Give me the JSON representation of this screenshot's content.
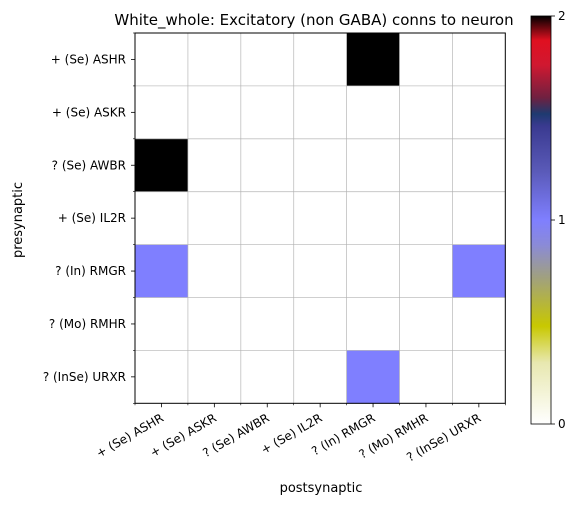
{
  "chart_data": {
    "type": "heatmap",
    "title": "White_whole: Excitatory (non GABA) conns to neuron",
    "xlabel": "postsynaptic",
    "ylabel": "presynaptic",
    "x_categories": [
      "+ (Se) ASHR",
      "+ (Se) ASKR",
      "? (Se) AWBR",
      "+ (Se) IL2R",
      "? (In) RMGR",
      "? (Mo) RMHR",
      "? (InSe) URXR"
    ],
    "y_categories": [
      "+ (Se) ASHR",
      "+ (Se) ASKR",
      "? (Se) AWBR",
      "+ (Se) IL2R",
      "? (In) RMGR",
      "? (Mo) RMHR",
      "? (InSe) URXR"
    ],
    "values": [
      [
        0,
        0,
        0,
        0,
        2,
        0,
        0
      ],
      [
        0,
        0,
        0,
        0,
        0,
        0,
        0
      ],
      [
        2,
        0,
        0,
        0,
        0,
        0,
        0
      ],
      [
        0,
        0,
        0,
        0,
        0,
        0,
        0
      ],
      [
        1,
        0,
        0,
        0,
        0,
        0,
        1
      ],
      [
        0,
        0,
        0,
        0,
        0,
        0,
        0
      ],
      [
        0,
        0,
        0,
        0,
        1,
        0,
        0
      ]
    ],
    "colorbar": {
      "range": [
        0,
        2
      ],
      "ticks": [
        "0",
        "1",
        "2"
      ],
      "colormap": "gist_stern_r"
    },
    "value_colors": {
      "0": "#ffffff",
      "1": "#7f7fff",
      "2": "#000000"
    },
    "grid": true
  }
}
